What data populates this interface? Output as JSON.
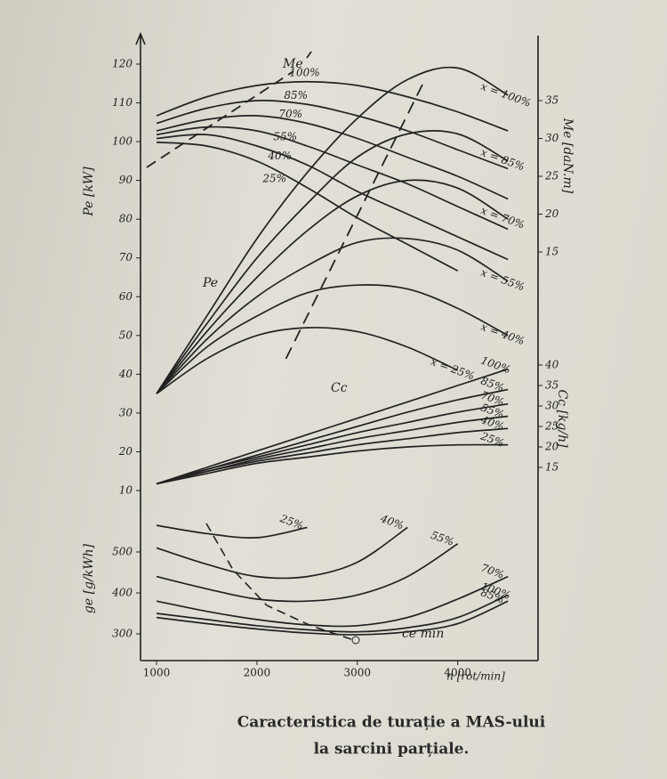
{
  "chart_data": [
    {
      "type": "line",
      "ylabel": "Pe [kW]",
      "curve_label": "Pe",
      "yaxis": "left",
      "color": "#222",
      "xlim": [
        840,
        4800
      ],
      "ylim": [
        10,
        120
      ],
      "yticks": [
        10,
        20,
        30,
        40,
        50,
        60,
        70,
        80,
        90,
        100,
        110,
        120
      ],
      "x": [
        1000,
        1500,
        2000,
        2500,
        3000,
        3500,
        4000,
        4500
      ],
      "series": [
        {
          "name": "x = 100%",
          "values": [
            35,
            55,
            75,
            92,
            106,
            116,
            119,
            112
          ]
        },
        {
          "name": "x = 85%",
          "values": [
            35,
            53,
            70,
            84,
            96,
            102,
            102,
            95
          ]
        },
        {
          "name": "x = 70%",
          "values": [
            35,
            51,
            65,
            77,
            86,
            90,
            88,
            80
          ]
        },
        {
          "name": "x = 55%",
          "values": [
            35,
            49,
            60,
            68,
            74,
            75,
            72,
            64
          ]
        },
        {
          "name": "x = 40%",
          "values": [
            35,
            47,
            55,
            61,
            63,
            62,
            57,
            50
          ]
        },
        {
          "name": "x = 25%",
          "values": [
            35,
            44,
            50,
            52,
            51,
            47,
            41,
            null
          ]
        }
      ]
    },
    {
      "type": "line",
      "ylabel": "Me [daN.m]",
      "curve_label": "Me",
      "yaxis": "right",
      "color": "#222",
      "xlim": [
        840,
        4800
      ],
      "ylim": [
        15,
        35
      ],
      "yticks": [
        15,
        20,
        25,
        30,
        35
      ],
      "x": [
        1000,
        1500,
        2000,
        2500,
        3000,
        3500,
        4000,
        4500
      ],
      "series": [
        {
          "name": "100%",
          "values": [
            33,
            35.5,
            37,
            37.5,
            37,
            35.5,
            33.5,
            31
          ]
        },
        {
          "name": "85%",
          "values": [
            32,
            34,
            35,
            34.5,
            33,
            31,
            28.5,
            26
          ]
        },
        {
          "name": "70%",
          "values": [
            31,
            32.5,
            33,
            32,
            30,
            27.5,
            25,
            22
          ]
        },
        {
          "name": "55%",
          "values": [
            30.5,
            31.5,
            31,
            29,
            26.5,
            24,
            21,
            18
          ]
        },
        {
          "name": "40%",
          "values": [
            30,
            30.5,
            29,
            26.5,
            23,
            20,
            17,
            14
          ]
        },
        {
          "name": "25%",
          "values": [
            29.5,
            29,
            27,
            23.5,
            19.5,
            16,
            12.5,
            null
          ]
        }
      ]
    },
    {
      "type": "line",
      "ylabel": "Cc [kg/h]",
      "curve_label": "Cc",
      "yaxis": "right",
      "color": "#222",
      "xlim": [
        840,
        4800
      ],
      "ylim": [
        15,
        40
      ],
      "yticks": [
        15,
        20,
        25,
        30,
        35,
        40
      ],
      "x": [
        1000,
        1500,
        2000,
        2500,
        3000,
        3500,
        4000,
        4500
      ],
      "series": [
        {
          "name": "100%",
          "values": [
            11,
            15,
            19,
            23,
            27,
            31,
            35,
            39
          ]
        },
        {
          "name": "85%",
          "values": [
            11,
            14.5,
            18,
            21.5,
            25,
            28.5,
            31.5,
            34
          ]
        },
        {
          "name": "70%",
          "values": [
            11,
            14.5,
            17.5,
            20.5,
            23.5,
            26,
            28.5,
            30.5
          ]
        },
        {
          "name": "55%",
          "values": [
            11,
            14,
            17,
            19.5,
            22,
            24,
            26,
            27.5
          ]
        },
        {
          "name": "40%",
          "values": [
            11,
            14,
            16.5,
            18.5,
            20.5,
            22,
            23.5,
            24.5
          ]
        },
        {
          "name": "25%",
          "values": [
            11,
            13.5,
            16,
            17.5,
            19,
            20,
            20.5,
            20.5
          ]
        }
      ]
    },
    {
      "type": "line",
      "ylabel": "ge [g/kWh]",
      "curve_label": "ce min",
      "yaxis": "left",
      "color": "#222",
      "xlabel": "n [rot/min]",
      "xlim": [
        840,
        4800
      ],
      "xticks": [
        1000,
        2000,
        3000,
        4000
      ],
      "ylim": [
        300,
        500
      ],
      "yticks": [
        300,
        400,
        500
      ],
      "x": [
        1000,
        1500,
        2000,
        2500,
        3000,
        3500,
        4000,
        4500
      ],
      "series": [
        {
          "name": "25%",
          "values": [
            565,
            545,
            535,
            560,
            null,
            null,
            null,
            null
          ]
        },
        {
          "name": "40%",
          "values": [
            510,
            470,
            440,
            440,
            475,
            560,
            null,
            null
          ]
        },
        {
          "name": "55%",
          "values": [
            440,
            410,
            385,
            380,
            395,
            440,
            520,
            null
          ]
        },
        {
          "name": "70%",
          "values": [
            380,
            355,
            335,
            322,
            320,
            340,
            385,
            440
          ]
        },
        {
          "name": "100%",
          "values": [
            350,
            335,
            320,
            310,
            305,
            315,
            340,
            395
          ]
        },
        {
          "name": "85%",
          "values": [
            340,
            325,
            312,
            302,
            298,
            305,
            325,
            380
          ]
        }
      ]
    }
  ],
  "caption": [
    "Caracteristica de turație a MAS-ului",
    "la sarcini parțiale."
  ]
}
